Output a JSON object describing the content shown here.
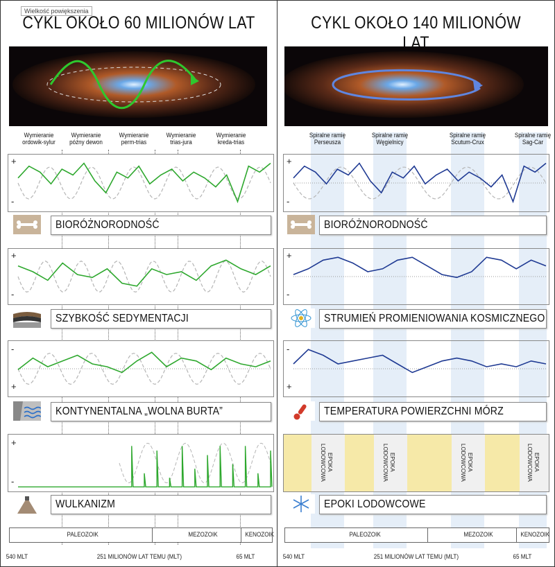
{
  "tooltip": "Wielkość powiększenia",
  "left": {
    "title": "CYKL OKOŁO 60 MILIONÓW LAT",
    "events": [
      {
        "l1": "Wymieranie",
        "l2": "ordowik-sylur"
      },
      {
        "l1": "Wymieranie",
        "l2": "późny dewon"
      },
      {
        "l1": "Wymieranie",
        "l2": "perm-trias"
      },
      {
        "l1": "Wymieranie",
        "l2": "trias-jura"
      },
      {
        "l1": "Wymieranie",
        "l2": "kreda-trias"
      }
    ],
    "panels": [
      {
        "label": "BIORÓŻNORODNOŚĆ",
        "icon": "fossil-bone-icon",
        "top_sign": "+",
        "bottom_sign": "-"
      },
      {
        "label": "SZYBKOŚĆ SEDYMENTACJI",
        "icon": "sediment-layers-icon",
        "top_sign": "+",
        "bottom_sign": "-"
      },
      {
        "label": "KONTYNENTALNA „WOLNA BURTA”",
        "icon": "coast-waves-icon",
        "top_sign": "-",
        "bottom_sign": "+"
      },
      {
        "label": "WULKANIZM",
        "icon": "volcano-icon",
        "top_sign": "+",
        "bottom_sign": "-"
      }
    ]
  },
  "right": {
    "title": "CYKL OKOŁO 140 MILIONÓW LAT",
    "arms": [
      {
        "l1": "Spiralne ramię",
        "l2": "Perseusza"
      },
      {
        "l1": "Spiralne ramię",
        "l2": "Węgielnicy"
      },
      {
        "l1": "Spiralne ramię",
        "l2": "Scutum-Crux"
      },
      {
        "l1": "Spiralne ramię",
        "l2": "Sag-Car"
      }
    ],
    "panels": [
      {
        "label": "BIORÓŻNORODNOŚĆ",
        "icon": "fossil-bone-icon",
        "top_sign": "+",
        "bottom_sign": "-"
      },
      {
        "label": "STRUMIEŃ PROMIENIOWANIA KOSMICZNEGO",
        "icon": "atom-icon",
        "top_sign": "+",
        "bottom_sign": "-"
      },
      {
        "label": "TEMPERATURA POWIERZCHNI MÓRZ",
        "icon": "thermometer-icon",
        "top_sign": "-",
        "bottom_sign": "+"
      },
      {
        "label": "EPOKI LODOWCOWE",
        "icon": "snowflake-icon"
      }
    ],
    "epoka": [
      "EPOKA LODOWCOWA",
      "EPOKA LODOWCOWA",
      "EPOKA LODOWCOWA",
      "EPOKA LODOWCOWA"
    ]
  },
  "eras": [
    "PALEOZOIK",
    "MEZOZOIK",
    "KENOZOIK"
  ],
  "axis": {
    "start": "540 MLT",
    "middle": "251 MILIONÓW LAT TEMU (MLT)",
    "end": "65 MLT"
  },
  "colors": {
    "left_series": "#2ea82e",
    "right_series": "#1f3a93",
    "reference": "#b5b5b5",
    "band": "#dce8f6",
    "ice_band": "#f6e9a8"
  },
  "chart_data": [
    {
      "type": "line",
      "title": "BIORÓŻNORODNOŚĆ",
      "x_range": [
        540,
        0
      ],
      "series": [
        {
          "values": [
            0.4,
            0.8,
            0.6,
            0.2,
            0.7,
            0.5,
            0.9,
            0.3,
            -0.1,
            0.6,
            0.4,
            0.8,
            0.2,
            0.5,
            0.7,
            0.3,
            0.6,
            0.4,
            0.1,
            0.5,
            -0.4,
            0.8,
            0.6,
            0.9
          ]
        }
      ]
    },
    {
      "type": "line",
      "title": "SZYBKOŚĆ SEDYMENTACJI",
      "x_range": [
        540,
        0
      ],
      "series": [
        {
          "values": [
            0.6,
            0.4,
            0.1,
            0.7,
            0.3,
            0.2,
            0.5,
            0.0,
            -0.1,
            0.5,
            0.3,
            0.4,
            0.1,
            0.6,
            0.8,
            0.5,
            0.3,
            0.6
          ]
        }
      ]
    },
    {
      "type": "line",
      "title": "KONTYNENTALNA „WOLNA BURTA”",
      "x_range": [
        540,
        0
      ],
      "series": [
        {
          "values": [
            0.2,
            0.6,
            0.3,
            0.5,
            0.7,
            0.4,
            0.3,
            0.1,
            0.5,
            0.8,
            0.3,
            0.6,
            0.5,
            0.2,
            0.6,
            0.4,
            0.3,
            0.5
          ]
        }
      ]
    },
    {
      "type": "line",
      "title": "WULKANIZM",
      "x_range": [
        540,
        0
      ],
      "series": [
        {
          "values": [
            0,
            0,
            0,
            0,
            0,
            0,
            0,
            0,
            0,
            0.9,
            0.3,
            0.8,
            0.2,
            0.9,
            0.4,
            0.7,
            0.9,
            0.5,
            0.9,
            0.3,
            0.8
          ]
        }
      ]
    },
    {
      "type": "line",
      "title": "BIORÓŻNORODNOŚĆ",
      "x_range": [
        540,
        0
      ],
      "series": [
        {
          "values": [
            0.4,
            0.8,
            0.6,
            0.2,
            0.7,
            0.5,
            0.9,
            0.3,
            -0.1,
            0.6,
            0.4,
            0.8,
            0.2,
            0.5,
            0.7,
            0.3,
            0.6,
            0.4,
            0.1,
            0.5,
            -0.4,
            0.8,
            0.6,
            0.9
          ]
        }
      ]
    },
    {
      "type": "line",
      "title": "STRUMIEŃ PROMIENIOWANIA KOSMICZNEGO",
      "x_range": [
        540,
        0
      ],
      "series": [
        {
          "values": [
            0.3,
            0.5,
            0.8,
            0.9,
            0.7,
            0.4,
            0.5,
            0.8,
            0.9,
            0.6,
            0.3,
            0.2,
            0.4,
            0.9,
            0.8,
            0.5,
            0.8,
            0.6
          ]
        }
      ]
    },
    {
      "type": "line",
      "title": "TEMPERATURA POWIERZCHNI MÓRZ",
      "x_range": [
        540,
        0
      ],
      "series": [
        {
          "values": [
            0.4,
            0.9,
            0.7,
            0.4,
            0.5,
            0.6,
            0.7,
            0.4,
            0.1,
            0.3,
            0.5,
            0.6,
            0.5,
            0.3,
            0.4,
            0.3,
            0.5,
            0.4
          ]
        }
      ]
    }
  ]
}
